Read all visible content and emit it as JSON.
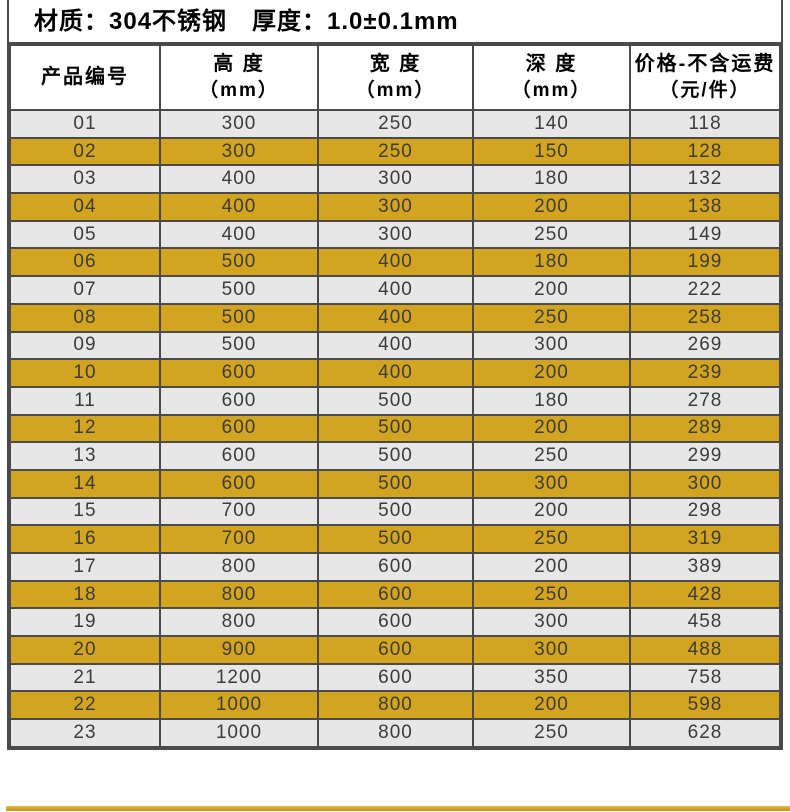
{
  "title": "材质：304不锈钢　厚度：1.0±0.1mm",
  "table": {
    "columns": [
      {
        "label": "产品编号",
        "sub": ""
      },
      {
        "label": "高 度",
        "sub": "（mm）"
      },
      {
        "label": "宽 度",
        "sub": "（mm）"
      },
      {
        "label": "深 度",
        "sub": "（mm）"
      },
      {
        "label": "价格-不含运费",
        "sub": "（元/件）"
      }
    ],
    "rows": [
      [
        "01",
        "300",
        "250",
        "140",
        "118"
      ],
      [
        "02",
        "300",
        "250",
        "150",
        "128"
      ],
      [
        "03",
        "400",
        "300",
        "180",
        "132"
      ],
      [
        "04",
        "400",
        "300",
        "200",
        "138"
      ],
      [
        "05",
        "400",
        "300",
        "250",
        "149"
      ],
      [
        "06",
        "500",
        "400",
        "180",
        "199"
      ],
      [
        "07",
        "500",
        "400",
        "200",
        "222"
      ],
      [
        "08",
        "500",
        "400",
        "250",
        "258"
      ],
      [
        "09",
        "500",
        "400",
        "300",
        "269"
      ],
      [
        "10",
        "600",
        "400",
        "200",
        "239"
      ],
      [
        "11",
        "600",
        "500",
        "180",
        "278"
      ],
      [
        "12",
        "600",
        "500",
        "200",
        "289"
      ],
      [
        "13",
        "600",
        "500",
        "250",
        "299"
      ],
      [
        "14",
        "600",
        "500",
        "300",
        "300"
      ],
      [
        "15",
        "700",
        "500",
        "200",
        "298"
      ],
      [
        "16",
        "700",
        "500",
        "250",
        "319"
      ],
      [
        "17",
        "800",
        "600",
        "200",
        "389"
      ],
      [
        "18",
        "800",
        "600",
        "250",
        "428"
      ],
      [
        "19",
        "800",
        "600",
        "300",
        "458"
      ],
      [
        "20",
        "900",
        "600",
        "300",
        "488"
      ],
      [
        "21",
        "1200",
        "600",
        "350",
        "758"
      ],
      [
        "22",
        "1000",
        "800",
        "200",
        "598"
      ],
      [
        "23",
        "1000",
        "800",
        "250",
        "628"
      ]
    ]
  },
  "colors": {
    "highlight_row": "#d2a41f",
    "plain_row": "#e7e7e7",
    "border": "#4a4a4a",
    "body_text": "#3c3c3c",
    "heading_text": "#000000",
    "bottom_strip": "#d2a41f"
  }
}
